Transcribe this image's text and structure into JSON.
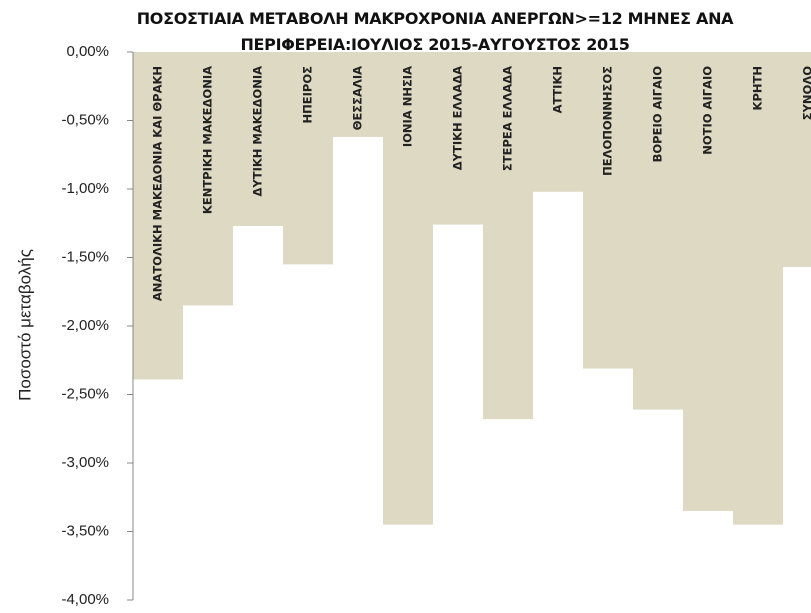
{
  "chart_data": {
    "type": "bar",
    "title": "ΠΟΣΟΣΤΙΑΙΑ ΜΕΤΑΒΟΛΗ ΜΑΚΡΟΧΡΟΝΙΑ ΑΝΕΡΓΩΝ>=12 ΜΗΝΕΣ ΑΝΑ ΠΕΡΙΦΕΡΕΙΑ:ΙΟΥΛΙΟΣ 2015-ΑΥΓΟΥΣΤΟΣ 2015",
    "y_label": "Ποσοστό μεταβολής",
    "categories": [
      "ΑΝΑΤΟΛΙΚΗ ΜΑΚΕΔΟΝΙΑ ΚΑΙ ΘΡΑΚΗ",
      "ΚΕΝΤΡΙΚΗ ΜΑΚΕΔΟΝΙΑ",
      "ΔΥΤΙΚΗ ΜΑΚΕΔΟΝΙΑ",
      "ΗΠΕΙΡΟΣ",
      "ΘΕΣΣΑΛΙΑ",
      "ΙΟΝΙΑ ΝΗΣΙΑ",
      "ΔΥΤΙΚΗ ΕΛΛΑΔΑ",
      "ΣΤΕΡΕΑ ΕΛΛΑΔΑ",
      "ΑΤΤΙΚΗ",
      "ΠΕΛΟΠΟΝΝΗΣΟΣ",
      "ΒΟΡΕΙΟ ΑΙΓΑΙΟ",
      "ΝΟΤΙΟ ΑΙΓΑΙΟ",
      "ΚΡΗΤΗ",
      "ΣΥΝΟΛΟ"
    ],
    "values": [
      -2.39,
      -1.85,
      -1.27,
      -1.55,
      -0.62,
      -3.45,
      -1.26,
      -2.68,
      -1.02,
      -2.31,
      -2.61,
      -3.35,
      -3.45,
      -1.57
    ],
    "color": "#ddd9c3",
    "ylim": [
      -4,
      0
    ],
    "yticks": [
      {
        "value": 0,
        "label": "0,00%"
      },
      {
        "value": -0.5,
        "label": "-0,50%"
      },
      {
        "value": -1,
        "label": "-1,00%"
      },
      {
        "value": -1.5,
        "label": "-1,50%"
      },
      {
        "value": -2,
        "label": "-2,00%"
      },
      {
        "value": -2.5,
        "label": "-2,50%"
      },
      {
        "value": -3,
        "label": "-3,00%"
      },
      {
        "value": -3.5,
        "label": "-3,50%"
      },
      {
        "value": -4,
        "label": "-4,00%"
      }
    ],
    "grid": false
  }
}
